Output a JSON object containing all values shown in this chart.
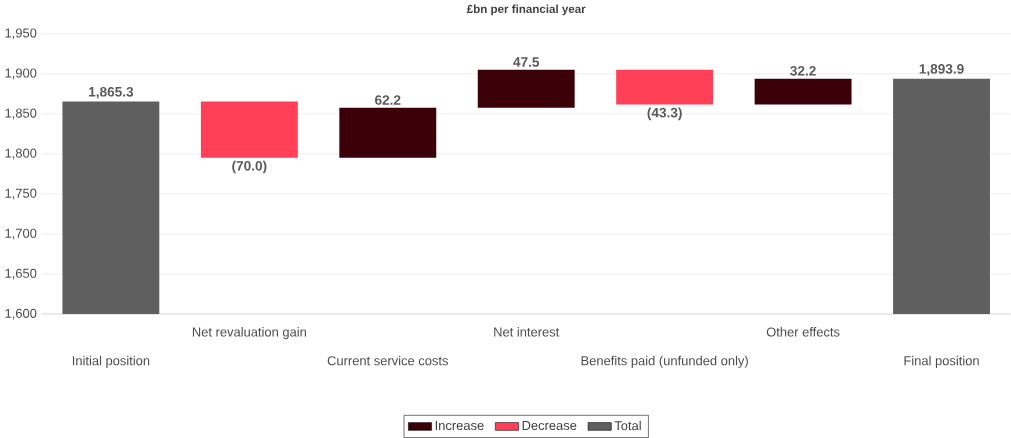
{
  "chart_data": {
    "type": "bar",
    "title": "£bn per financial year",
    "categories": [
      "Initial position",
      "Net revaluation gain",
      "Current service costs",
      "Net interest",
      "Benefits paid (unfunded only)",
      "Other effects",
      "Final position"
    ],
    "series": [
      {
        "name": "Increase",
        "color": "#3c0008",
        "values": [
          null,
          null,
          62.2,
          47.5,
          null,
          32.2,
          null
        ],
        "base": [
          null,
          null,
          1795.3,
          1857.5,
          null,
          1861.7,
          null
        ],
        "value_labels": [
          null,
          null,
          "62.2",
          "47.5",
          null,
          "32.2",
          null
        ]
      },
      {
        "name": "Decrease",
        "color": "#ff4057",
        "values": [
          null,
          -70.0,
          null,
          null,
          -43.3,
          null,
          null
        ],
        "base": [
          null,
          1865.3,
          null,
          null,
          1905,
          null,
          null
        ],
        "value_labels": [
          null,
          "(70.0)",
          null,
          null,
          "(43.3)",
          null,
          null
        ]
      },
      {
        "name": "Total",
        "color": "#5f5f5f",
        "values": [
          1865.3,
          null,
          null,
          null,
          null,
          null,
          1893.9
        ],
        "value_labels": [
          "1,865.3",
          null,
          null,
          null,
          null,
          null,
          "1,893.9"
        ]
      }
    ],
    "ylim": [
      1600,
      1950
    ],
    "yticks": [
      {
        "value": 1600,
        "label": "1,600"
      },
      {
        "value": 1650,
        "label": "1,650"
      },
      {
        "value": 1700,
        "label": "1,700"
      },
      {
        "value": 1750,
        "label": "1,750"
      },
      {
        "value": 1800,
        "label": "1,800"
      },
      {
        "value": 1850,
        "label": "1,850"
      },
      {
        "value": 1900,
        "label": "1,900"
      },
      {
        "value": 1950,
        "label": "1,950"
      }
    ],
    "grid": "y",
    "legend": "bottom"
  }
}
